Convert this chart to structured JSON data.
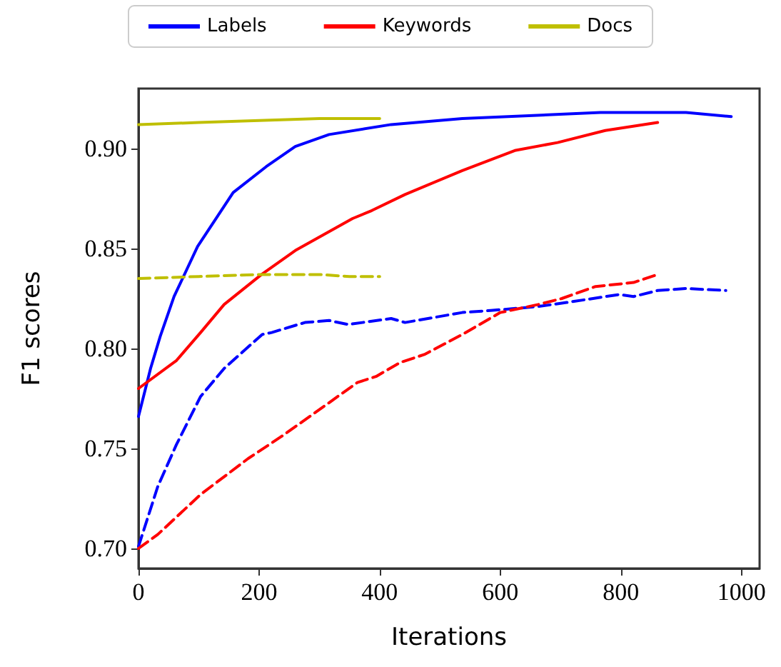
{
  "chart_data": {
    "type": "line",
    "xlabel": "Iterations",
    "ylabel": "F1 scores",
    "xlim": [
      0,
      1030
    ],
    "ylim": [
      0.69,
      0.93
    ],
    "xticks": [
      0,
      200,
      400,
      600,
      800,
      1000
    ],
    "yticks": [
      {
        "value": 0.7,
        "label": "0.70"
      },
      {
        "value": 0.75,
        "label": "0.75"
      },
      {
        "value": 0.8,
        "label": "0.80"
      },
      {
        "value": 0.85,
        "label": "0.85"
      },
      {
        "value": 0.9,
        "label": "0.90"
      }
    ],
    "legend": "top",
    "grid": false,
    "marker": "none",
    "series": [
      {
        "name": "Labels",
        "color": "#0000ff",
        "line_style": "solid",
        "x": [
          0,
          20,
          36,
          59,
          98,
          157,
          212,
          260,
          316,
          419,
          537,
          766,
          908,
          983
        ],
        "values": [
          0.766,
          0.79,
          0.806,
          0.826,
          0.851,
          0.878,
          0.891,
          0.901,
          0.907,
          0.912,
          0.915,
          0.918,
          0.918,
          0.916
        ]
      },
      {
        "name": "Keywords",
        "color": "#ff0000",
        "line_style": "solid",
        "x": [
          0,
          63,
          103,
          142,
          204,
          260,
          355,
          387,
          442,
          537,
          624,
          695,
          774,
          861
        ],
        "values": [
          0.78,
          0.794,
          0.808,
          0.822,
          0.837,
          0.849,
          0.865,
          0.869,
          0.877,
          0.889,
          0.899,
          0.903,
          0.909,
          0.913
        ]
      },
      {
        "name": "Docs",
        "color": "#bfbf00",
        "line_style": "solid",
        "x": [
          0,
          100,
          200,
          300,
          400
        ],
        "values": [
          0.912,
          0.913,
          0.914,
          0.915,
          0.915
        ]
      },
      {
        "color": "#0000ff",
        "line_style": "dashed",
        "x": [
          0,
          32,
          63,
          103,
          142,
          205,
          221,
          276,
          316,
          348,
          419,
          442,
          537,
          584,
          663,
          710,
          797,
          821,
          861,
          908,
          974
        ],
        "values": [
          0.701,
          0.731,
          0.752,
          0.776,
          0.79,
          0.807,
          0.808,
          0.813,
          0.814,
          0.812,
          0.815,
          0.813,
          0.818,
          0.819,
          0.821,
          0.823,
          0.827,
          0.826,
          0.829,
          0.83,
          0.829
        ]
      },
      {
        "color": "#ff0000",
        "line_style": "dashed",
        "x": [
          0,
          32,
          103,
          182,
          237,
          284,
          363,
          394,
          434,
          474,
          537,
          600,
          663,
          702,
          758,
          821,
          861
        ],
        "values": [
          0.7,
          0.707,
          0.727,
          0.745,
          0.756,
          0.766,
          0.783,
          0.786,
          0.793,
          0.797,
          0.807,
          0.818,
          0.822,
          0.825,
          0.831,
          0.833,
          0.837
        ]
      },
      {
        "color": "#bfbf00",
        "line_style": "dashed",
        "x": [
          0,
          100,
          200,
          250,
          300,
          350,
          400
        ],
        "values": [
          0.835,
          0.836,
          0.837,
          0.837,
          0.837,
          0.836,
          0.836
        ]
      }
    ]
  }
}
